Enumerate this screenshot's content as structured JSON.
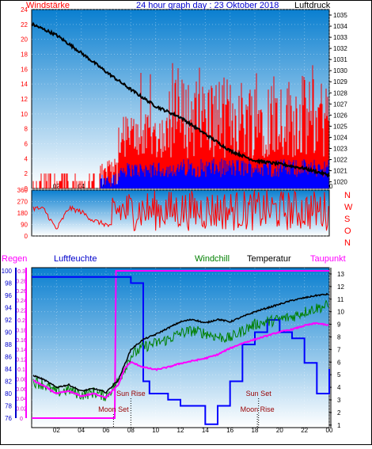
{
  "header": {
    "left_label": "Windstärke",
    "title": "24 hour graph day : 23 Oktober 2018",
    "right_label": "Luftdruck"
  },
  "colors": {
    "wind": "#ff0000",
    "gust": "#0000ff",
    "pressure": "#000000",
    "rain": "#ff00ff",
    "humidity": "#0000ff",
    "windchill": "#008000",
    "temperature": "#000000",
    "dewpoint": "#ff00ff",
    "panel_top": "#0a7fd0",
    "panel_bottom": "#ffffff",
    "title_blue": "#0000cc",
    "moon_label": "#990000"
  },
  "chart_data": [
    {
      "id": "wind-pressure",
      "type": "line",
      "series": [
        {
          "name": "Windstärke",
          "axis": "left",
          "style": "bar"
        },
        {
          "name": "Luftdruck",
          "axis": "right",
          "x": [
            0,
            2,
            4,
            6,
            8,
            10,
            12,
            14,
            16,
            18,
            20,
            22,
            24
          ],
          "y": [
            1034.2,
            1033.2,
            1031.6,
            1029.9,
            1028.3,
            1026.8,
            1025.8,
            1024.3,
            1022.8,
            1021.9,
            1021.6,
            1021.2,
            1020.6
          ]
        }
      ],
      "x_ticks": [
        "02",
        "04",
        "06",
        "08",
        "10",
        "12",
        "14",
        "16",
        "18",
        "20",
        "22",
        "00"
      ],
      "y_left": {
        "ticks": [
          0,
          2,
          4,
          6,
          8,
          10,
          12,
          14,
          16,
          18,
          20,
          22,
          24
        ],
        "ylim": [
          0,
          24
        ]
      },
      "y_right": {
        "ticks": [
          1020,
          1021,
          1022,
          1023,
          1024,
          1025,
          1026,
          1027,
          1028,
          1029,
          1030,
          1031,
          1032,
          1033,
          1034,
          1035
        ],
        "ylim": [
          1019.4,
          1035.5
        ]
      },
      "grid": true
    },
    {
      "id": "wind-direction",
      "type": "line",
      "series": [
        {
          "name": "Windrichtung",
          "x": [
            0,
            1,
            2,
            3,
            4,
            5,
            6,
            7,
            8,
            9,
            10,
            11,
            12,
            13,
            14,
            15,
            16,
            17,
            18,
            19,
            20,
            21,
            22,
            23,
            24
          ],
          "y": [
            220,
            210,
            50,
            220,
            190,
            120,
            90,
            40,
            300,
            180,
            250,
            200,
            160,
            220,
            180,
            240,
            200,
            150,
            230,
            190,
            210,
            170,
            240,
            190,
            200
          ]
        }
      ],
      "y_ticks": [
        0,
        90,
        180,
        270,
        360
      ],
      "right_labels": [
        "N",
        "W",
        "S",
        "O",
        "N"
      ],
      "ylim": [
        0,
        360
      ]
    },
    {
      "id": "temp-humidity",
      "type": "line",
      "legend": [
        "Regen",
        "Luftfeuchte",
        "Windchill",
        "Temperatur",
        "Taupunkt"
      ],
      "series": [
        {
          "name": "Regen",
          "x": [
            0,
            6.7,
            6.8,
            24
          ],
          "y": [
            0,
            0,
            0.3,
            0.3
          ]
        },
        {
          "name": "Luftfeuchte",
          "x": [
            0,
            6,
            7.8,
            8,
            9,
            9.5,
            10,
            11,
            12,
            14,
            15,
            16,
            17,
            18,
            19,
            20,
            21,
            22,
            23,
            24
          ],
          "y": [
            99,
            99,
            99,
            98,
            82,
            80,
            80,
            79,
            78,
            75,
            78,
            82,
            88,
            90,
            92,
            90,
            89,
            85,
            80,
            84
          ]
        },
        {
          "name": "Windchill",
          "x": [
            0,
            1,
            2,
            3,
            4,
            5,
            6,
            7,
            7.5,
            8,
            9,
            10,
            11,
            12,
            13,
            14,
            15,
            16,
            17,
            18,
            19,
            20,
            21,
            22,
            23,
            24
          ],
          "y": [
            4.5,
            4.2,
            3.6,
            3.8,
            3.4,
            3.6,
            3.3,
            4.5,
            5.5,
            6.5,
            7.2,
            7.5,
            7.8,
            8.3,
            8.5,
            8.3,
            8.0,
            7.9,
            8.5,
            9.0,
            9.2,
            9.4,
            9.6,
            10.0,
            10.3,
            10.5
          ]
        },
        {
          "name": "Temperatur",
          "x": [
            0,
            1,
            2,
            3,
            4,
            5,
            6,
            7,
            7.5,
            8,
            9,
            10,
            11,
            12,
            13,
            14,
            15,
            16,
            17,
            18,
            19,
            20,
            21,
            22,
            23,
            24
          ],
          "y": [
            5.0,
            4.6,
            4.0,
            4.2,
            3.7,
            3.9,
            3.6,
            4.6,
            5.8,
            7.0,
            7.8,
            8.2,
            8.7,
            9.2,
            9.4,
            9.1,
            9.4,
            9.2,
            9.6,
            10.0,
            10.3,
            10.6,
            10.9,
            11.1,
            11.3,
            11.4
          ]
        },
        {
          "name": "Taupunkt",
          "x": [
            0,
            1,
            2,
            3,
            4,
            5,
            6,
            7,
            7.5,
            8,
            9,
            10,
            11,
            12,
            13,
            14,
            15,
            16,
            17,
            18,
            19,
            20,
            21,
            22,
            23,
            24
          ],
          "y": [
            4.6,
            4.1,
            3.5,
            3.7,
            3.3,
            3.5,
            3.2,
            4.2,
            5.5,
            6.0,
            5.6,
            5.4,
            5.6,
            5.9,
            6.1,
            6.3,
            6.6,
            7.1,
            7.5,
            7.8,
            8.1,
            8.4,
            8.6,
            8.9,
            9.1,
            8.9
          ]
        }
      ],
      "x_ticks": [
        "02",
        "04",
        "06",
        "08",
        "10",
        "12",
        "14",
        "16",
        "18",
        "20",
        "22",
        "00"
      ],
      "y_humidity": {
        "ticks": [
          76,
          78,
          80,
          82,
          84,
          86,
          88,
          90,
          92,
          94,
          96,
          98,
          100
        ],
        "ylim": [
          76,
          100
        ]
      },
      "y_rain": {
        "ticks": [
          "0",
          "0.02",
          "0.04",
          "0.06",
          "0.08",
          "0.1",
          "0.12",
          "0.14",
          "0.16",
          "0.18",
          "0.2",
          "0.22",
          "0.24",
          "0.26",
          "0.28",
          "0.3"
        ],
        "ylim": [
          0,
          0.3
        ]
      },
      "y_temp": {
        "ticks": [
          1,
          2,
          3,
          4,
          5,
          6,
          7,
          8,
          9,
          10,
          11,
          12,
          13
        ],
        "ylim": [
          0.8,
          13.5
        ]
      },
      "annotations": [
        {
          "text": "Moon Set",
          "row": "lower",
          "hour": 6.6
        },
        {
          "text": "Sun Rise",
          "row": "upper",
          "hour": 8.0
        },
        {
          "text": "Sun Set",
          "row": "upper",
          "hour": 18.3
        },
        {
          "text": "Moon Rise",
          "row": "lower",
          "hour": 18.2
        }
      ]
    }
  ]
}
